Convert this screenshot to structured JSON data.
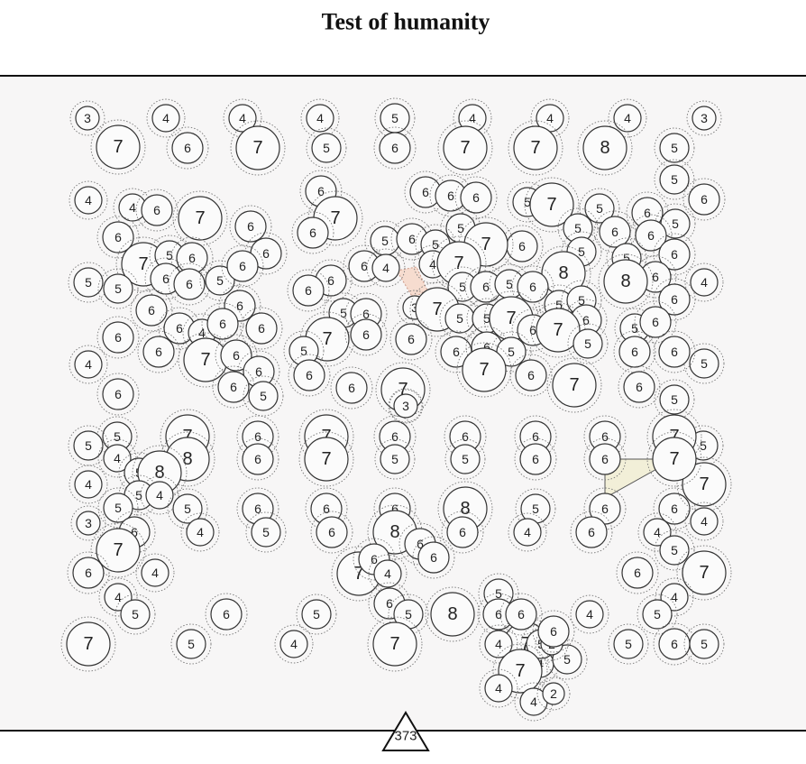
{
  "header": {
    "title": "Test of humanity"
  },
  "board": {
    "circles": [
      3,
      4,
      4,
      4,
      5,
      4,
      4,
      4,
      3,
      7,
      6,
      7,
      5,
      6,
      7,
      7,
      8,
      5,
      5,
      4,
      4,
      6,
      7,
      6,
      6,
      6,
      6,
      7,
      6,
      6,
      6,
      6,
      5,
      7,
      5,
      6,
      5,
      6,
      6,
      5,
      5,
      6,
      6,
      5,
      6,
      5,
      7,
      6,
      7,
      5,
      6,
      6,
      6,
      5,
      6,
      5,
      5,
      6,
      4,
      4,
      7,
      5,
      5,
      6,
      8,
      8,
      6,
      4,
      6,
      6,
      5,
      6,
      5,
      6,
      5,
      5,
      6,
      6,
      6,
      3,
      7,
      5,
      6,
      5,
      5,
      7,
      5,
      6,
      4,
      6,
      6,
      6,
      7,
      6,
      6,
      6,
      7,
      5,
      6,
      5,
      6,
      7,
      6,
      6,
      6,
      5,
      5,
      6,
      6,
      5,
      4,
      6,
      6,
      7,
      6,
      6,
      5,
      6,
      6,
      7,
      7,
      6,
      5,
      5,
      5,
      7,
      8,
      6,
      6,
      7,
      7,
      6,
      5,
      6,
      5,
      6,
      6,
      6,
      6,
      7,
      6,
      6,
      4,
      6,
      4,
      5,
      8,
      3,
      5,
      4,
      5,
      5,
      7,
      8,
      4,
      6,
      5,
      8,
      6,
      6,
      4,
      6,
      4,
      5,
      6,
      6,
      7,
      6,
      4,
      7,
      7,
      6,
      5,
      4,
      6,
      6,
      7,
      4,
      4,
      6,
      5,
      6,
      6,
      4,
      5,
      5,
      5,
      6,
      5,
      7,
      8,
      5,
      6,
      4,
      7,
      7,
      5,
      4,
      4,
      4,
      5,
      7,
      5,
      6,
      2,
      5,
      6,
      4,
      4,
      2,
      2,
      3
    ]
  },
  "footer": {
    "count": 373
  }
}
